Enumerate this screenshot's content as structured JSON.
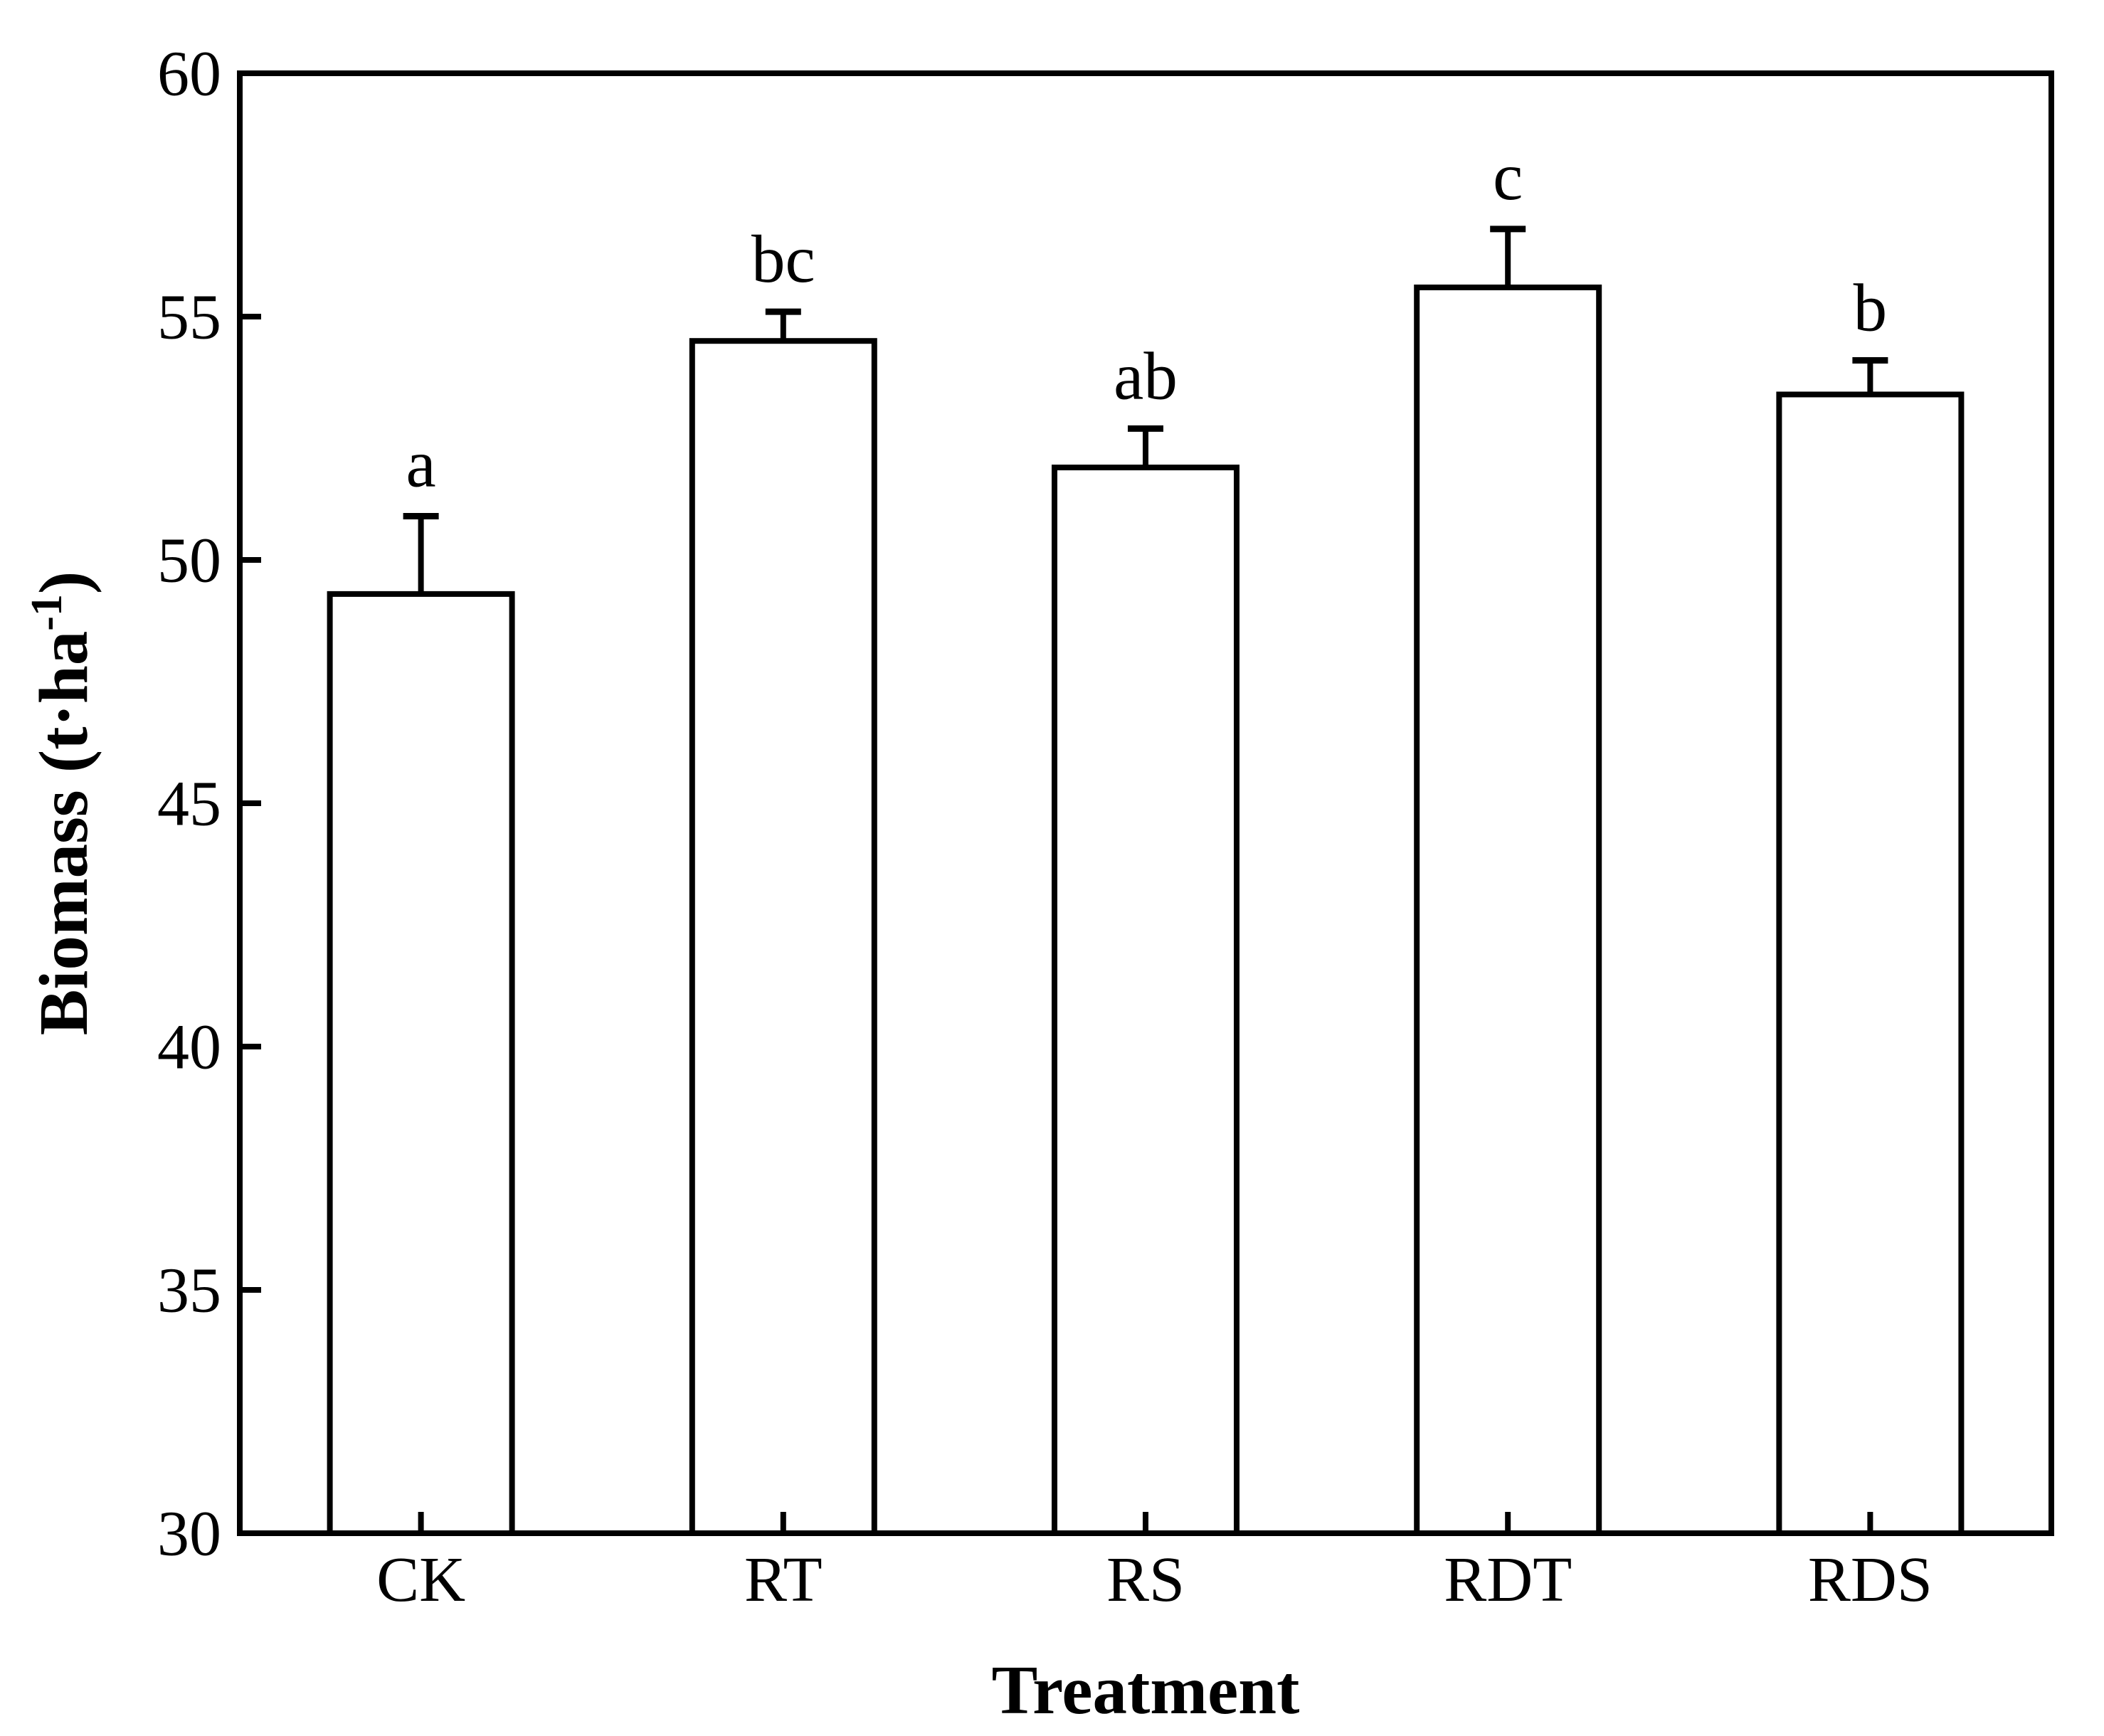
{
  "figure": {
    "background_color": "#ffffff",
    "ink_color": "#000000"
  },
  "chart_data": {
    "type": "bar",
    "title": "",
    "xlabel": "Treatment",
    "ylabel": "Biomass (t·ha⁻¹)",
    "ylabel_parts": {
      "main": "Biomass (t·ha",
      "sup": "-1",
      "close": ")"
    },
    "categories": [
      "CK",
      "RT",
      "RS",
      "RDT",
      "RDS"
    ],
    "values": [
      49.3,
      54.5,
      51.9,
      55.6,
      53.4
    ],
    "errors": [
      1.6,
      0.6,
      0.8,
      1.2,
      0.7
    ],
    "sig_letters": [
      "a",
      "bc",
      "ab",
      "c",
      "b"
    ],
    "ylim": [
      30,
      60
    ],
    "yticks": [
      30,
      35,
      40,
      45,
      50,
      55,
      60
    ],
    "error_bar_style": "upper-only",
    "bar_fill": "#ffffff",
    "bar_stroke": "#000000",
    "grid": false,
    "legend": "none"
  }
}
